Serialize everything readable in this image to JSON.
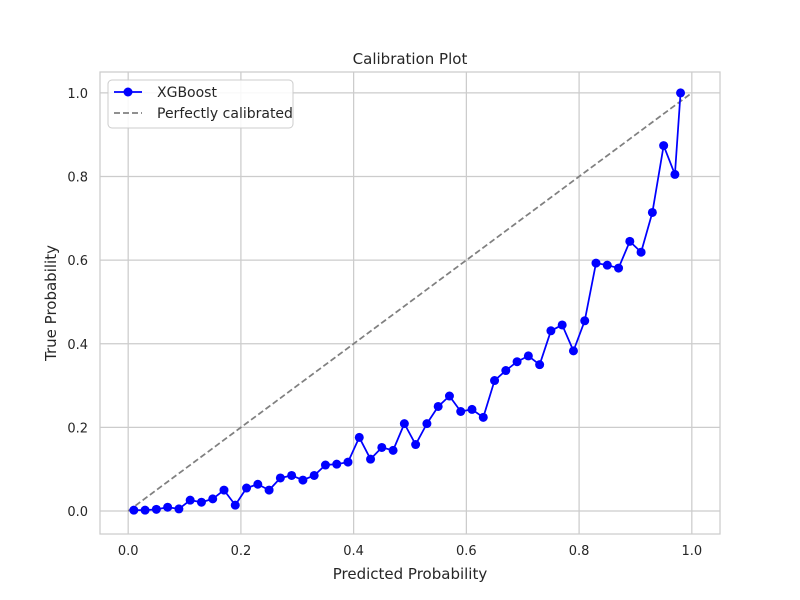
{
  "chart_data": {
    "type": "line",
    "title": "Calibration Plot",
    "xlabel": "Predicted Probability",
    "ylabel": "True Probability",
    "xlim": [
      -0.05,
      1.05
    ],
    "ylim": [
      -0.055,
      1.05
    ],
    "xticks": [
      0.0,
      0.2,
      0.4,
      0.6,
      0.8,
      1.0
    ],
    "xtick_labels": [
      "0.0",
      "0.2",
      "0.4",
      "0.6",
      "0.8",
      "1.0"
    ],
    "yticks": [
      0.0,
      0.2,
      0.4,
      0.6,
      0.8,
      1.0
    ],
    "ytick_labels": [
      "0.0",
      "0.2",
      "0.4",
      "0.6",
      "0.8",
      "1.0"
    ],
    "grid": true,
    "legend_position": "top-left",
    "series": [
      {
        "name": "XGBoost",
        "style": "solid line with circle markers",
        "color": "#0000ff",
        "x": [
          0.01,
          0.03,
          0.05,
          0.07,
          0.09,
          0.11,
          0.13,
          0.15,
          0.17,
          0.19,
          0.21,
          0.23,
          0.25,
          0.27,
          0.29,
          0.31,
          0.33,
          0.35,
          0.37,
          0.39,
          0.41,
          0.43,
          0.45,
          0.47,
          0.49,
          0.51,
          0.53,
          0.55,
          0.57,
          0.59,
          0.61,
          0.63,
          0.65,
          0.67,
          0.69,
          0.71,
          0.73,
          0.75,
          0.77,
          0.79,
          0.81,
          0.83,
          0.85,
          0.87,
          0.89,
          0.91,
          0.93,
          0.95,
          0.97,
          0.98
        ],
        "y": [
          0.002,
          0.002,
          0.004,
          0.009,
          0.005,
          0.026,
          0.021,
          0.029,
          0.05,
          0.014,
          0.055,
          0.064,
          0.05,
          0.079,
          0.085,
          0.074,
          0.085,
          0.11,
          0.112,
          0.117,
          0.176,
          0.124,
          0.152,
          0.145,
          0.209,
          0.159,
          0.209,
          0.25,
          0.275,
          0.238,
          0.243,
          0.224,
          0.312,
          0.336,
          0.357,
          0.371,
          0.35,
          0.431,
          0.445,
          0.383,
          0.455,
          0.593,
          0.588,
          0.581,
          0.645,
          0.619,
          0.714,
          0.874,
          0.805,
          1.0
        ]
      },
      {
        "name": "Perfectly calibrated",
        "style": "dashed line",
        "color": "#808080",
        "x": [
          0.0,
          1.0
        ],
        "y": [
          0.0,
          1.0
        ]
      }
    ]
  }
}
